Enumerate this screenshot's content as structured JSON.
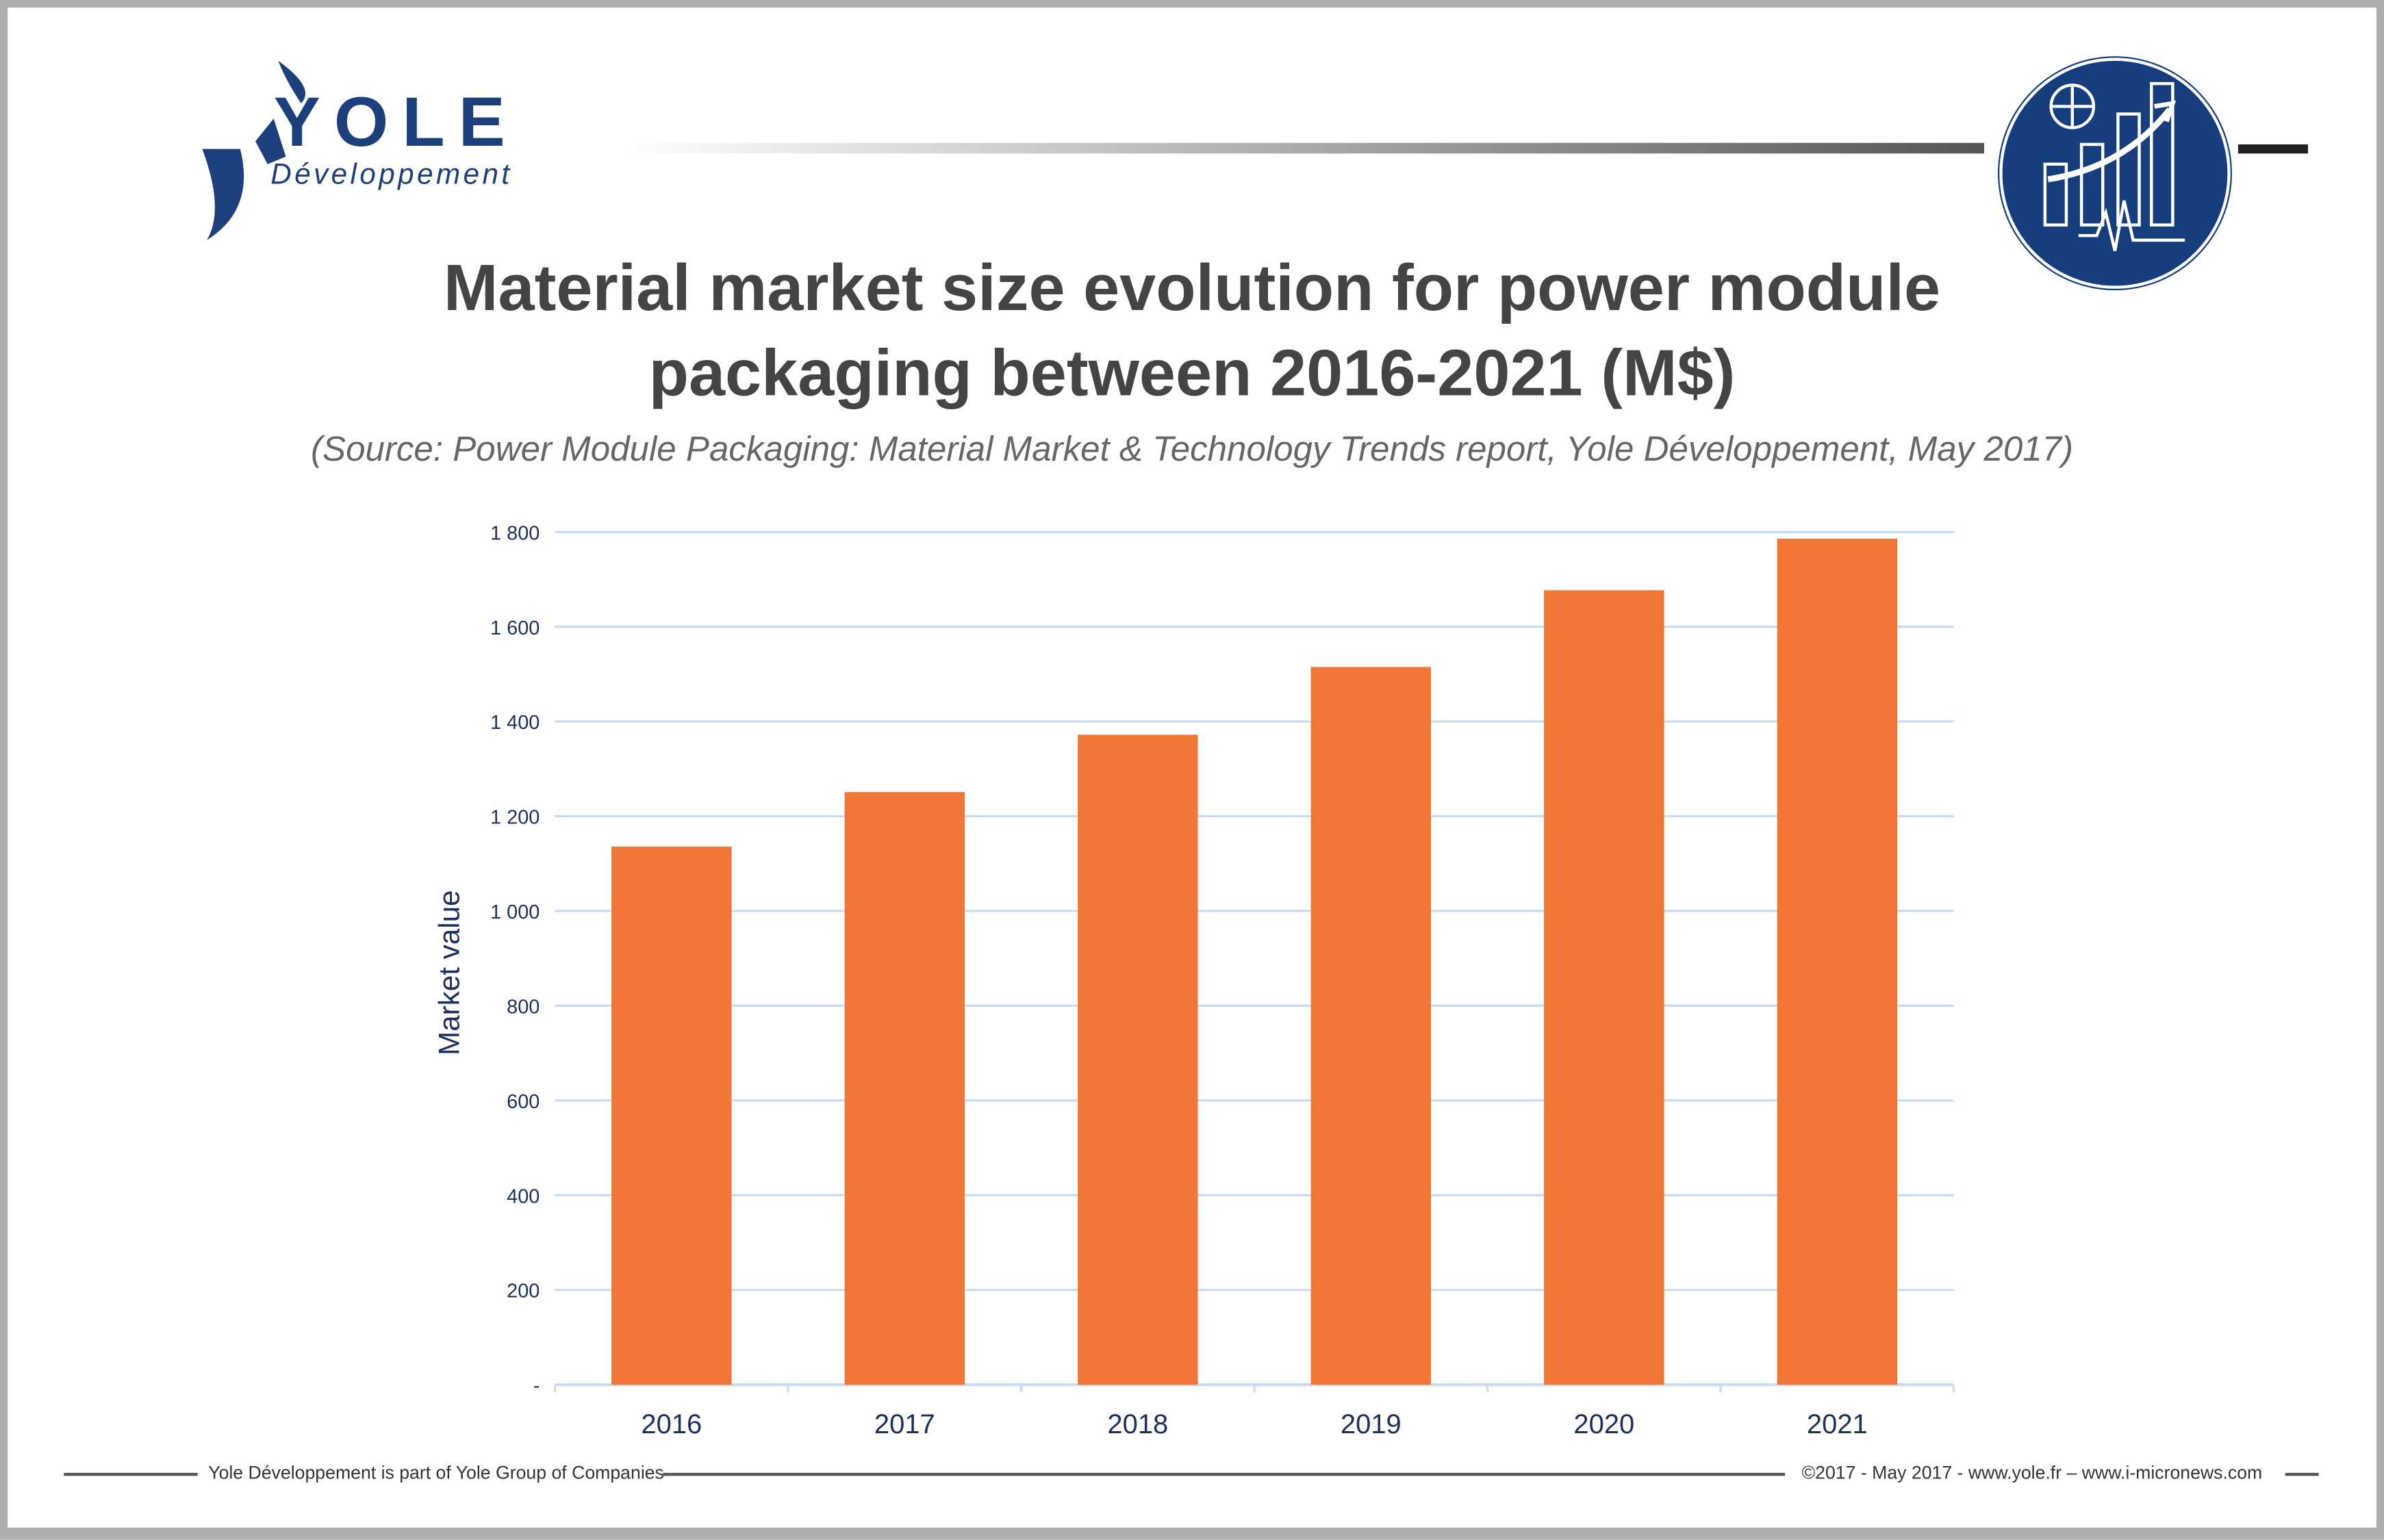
{
  "logo": {
    "name": "YOLE",
    "sub": "Développement"
  },
  "title_line1": "Material market size evolution for power module",
  "title_line2": "packaging between 2016-2021 (M$)",
  "subtitle": "(Source: Power Module Packaging: Material Market & Technology Trends report, Yole Développement, May 2017)",
  "footer": {
    "left": "Yole Développement is part of Yole Group of Companies",
    "right": "©2017 - May 2017 - www.yole.fr – www.i-micronews.com"
  },
  "colors": {
    "bar": "#ef7634",
    "grid": "#c9dcf3",
    "axis_text": "#1d2f5e",
    "brand": "#1d3f7c"
  },
  "chart_data": {
    "type": "bar",
    "title": "Material market size evolution for power module packaging between 2016-2021 (M$)",
    "xlabel": "",
    "ylabel": "Market value",
    "categories": [
      "2016",
      "2017",
      "2018",
      "2019",
      "2020",
      "2021"
    ],
    "values": [
      1136,
      1251,
      1372,
      1515,
      1677,
      1786
    ],
    "ylim": [
      0,
      1800
    ],
    "yticks": [
      0,
      200,
      400,
      600,
      800,
      1000,
      1200,
      1400,
      1600,
      1800
    ],
    "ytick_labels": [
      "-",
      "200",
      "400",
      "600",
      "800",
      "1 000",
      "1 200",
      "1 400",
      "1 600",
      "1 800"
    ],
    "grid": true,
    "legend": "none"
  }
}
